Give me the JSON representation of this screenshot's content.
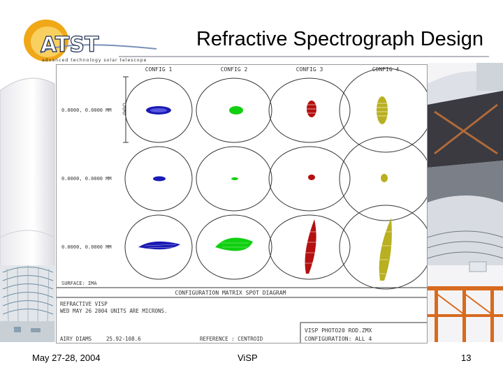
{
  "slide": {
    "title": "Refractive Spectrograph Design",
    "footer_left": "May 27-28, 2004",
    "footer_center": "ViSP",
    "page_number": "13"
  },
  "logo": {
    "wordmark": "ATST",
    "tagline": "advanced technology solar telescope"
  },
  "spot_diagram": {
    "config_labels": [
      "CONFIG 1",
      "CONFIG 2",
      "CONFIG 3",
      "CONFIG 4"
    ],
    "field_labels": [
      "0.0000, 0.0000 MM",
      "0.0000, 0.0000 MM",
      "0.0000, 0.0000 MM"
    ],
    "surface_label": "SURFACE: IMA",
    "panel_title": "CONFIGURATION MATRIX SPOT DIAGRAM",
    "info_line1": "REFRACTIVE VISP",
    "info_line2": "WED MAY 26 2004  UNITS ARE MICRONS.",
    "airy_label": "AIRY DIAMS",
    "airy_values": "25.92-108.6",
    "reference": "REFERENCE  : CENTROID",
    "file_name": "VISP PHOTO20 ROD.ZMX",
    "configuration": "CONFIGURATION: ALL 4",
    "spot_colors": [
      "#1a1ab4",
      "#10d010",
      "#b41010",
      "#b8b020"
    ]
  }
}
